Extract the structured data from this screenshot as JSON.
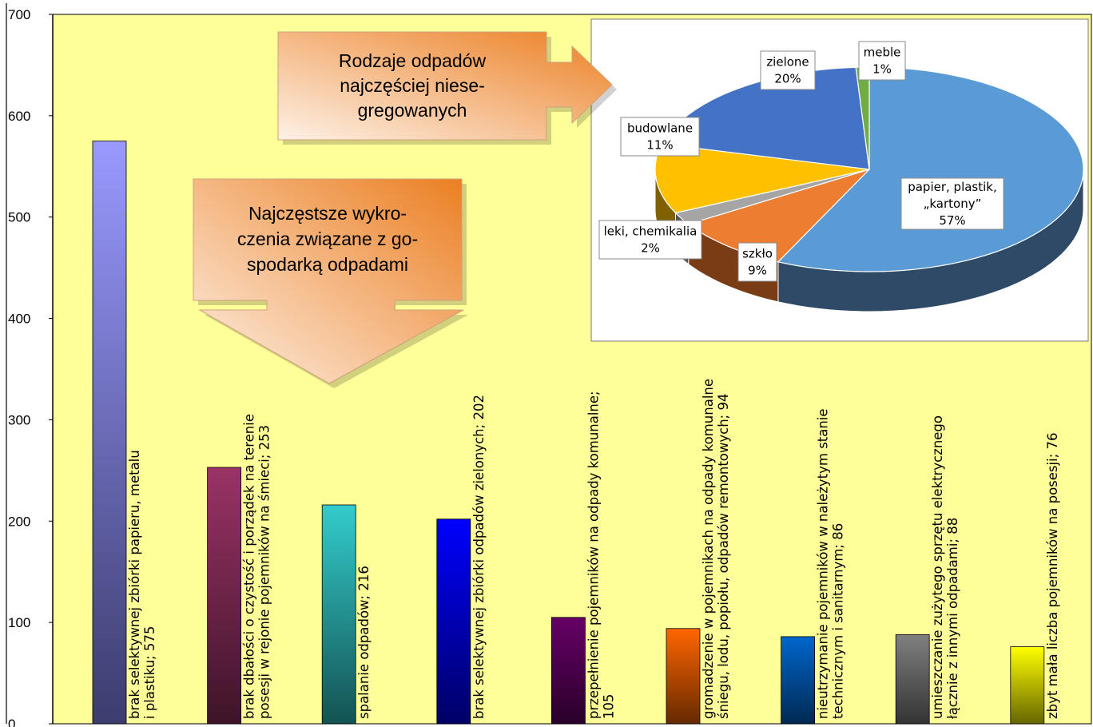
{
  "chart_data": [
    {
      "type": "bar",
      "ylim": [
        0,
        700
      ],
      "yticks": [
        "0",
        "100",
        "200",
        "300",
        "400",
        "500",
        "600",
        "700"
      ],
      "grid": false,
      "background": "#ffff99",
      "categories": [
        {
          "lines": [
            "brak selektywnej zbiórki papieru, metalu",
            "i plastiku; 575"
          ],
          "value": 575,
          "color_top": "#9999ff",
          "color_bottom": "#3c3c6e"
        },
        {
          "lines": [
            "brak dbałości o czystość i porządek na terenie",
            "posesji w rejonie pojemników na śmieci; 253"
          ],
          "value": 253,
          "color_top": "#9a3366",
          "color_bottom": "#3e1428"
        },
        {
          "lines": [
            "spalanie odpadów; 216"
          ],
          "value": 216,
          "color_top": "#33cccc",
          "color_bottom": "#145252"
        },
        {
          "lines": [
            "brak selektywnej zbiórki odpadów zielonych; 202"
          ],
          "value": 202,
          "color_top": "#0000ff",
          "color_bottom": "#000066"
        },
        {
          "lines": [
            "przepełnienie pojemników na odpady komunalne;",
            "105"
          ],
          "value": 105,
          "color_top": "#660066",
          "color_bottom": "#290029"
        },
        {
          "lines": [
            "gromadzenie w pojemnikach na odpady komunalne",
            "śniegu, lodu, popiołu, odpadów remontowych; 94"
          ],
          "value": 94,
          "color_top": "#ff6600",
          "color_bottom": "#662900"
        },
        {
          "lines": [
            "nieutrzymanie pojemników w należytym stanie",
            "technicznym i sanitarnym; 86"
          ],
          "value": 86,
          "color_top": "#0066cc",
          "color_bottom": "#002952"
        },
        {
          "lines": [
            "umieszczanie zużytego sprzętu elektrycznego",
            "łącznie z innymi odpadami; 88"
          ],
          "value": 88,
          "color_top": "#808080",
          "color_bottom": "#333333"
        },
        {
          "lines": [
            "zbyt mała liczba pojemników na posesji; 76"
          ],
          "value": 76,
          "color_top": "#ffff00",
          "color_bottom": "#666600"
        }
      ],
      "callout_lines": [
        "Najczęstsze wykro-",
        "czenia związane z go-",
        "spodarką odpadami"
      ]
    },
    {
      "type": "pie",
      "callout_lines": [
        "Rodzaje odpadów",
        "najczęściej niese-",
        "gregowanych"
      ],
      "slices": [
        {
          "lines": [
            "papier, plastik,",
            "„kartony”",
            "57%"
          ],
          "value": 57,
          "color": "#5b9bd5",
          "side": "#2e4a66"
        },
        {
          "lines": [
            "szkło",
            "9%"
          ],
          "value": 9,
          "color": "#ed7d31",
          "side": "#7a3c14"
        },
        {
          "lines": [
            "leki, chemikalia",
            "2%"
          ],
          "value": 2,
          "color": "#a5a5a5",
          "side": "#555555"
        },
        {
          "lines": [
            "budowlane",
            "11%"
          ],
          "value": 11,
          "color": "#ffc000",
          "side": "#806000"
        },
        {
          "lines": [
            "zielone",
            "20%"
          ],
          "value": 20,
          "color": "#4472c4",
          "side": "#223a66"
        },
        {
          "lines": [
            "meble",
            "1%"
          ],
          "value": 1,
          "color": "#70ad47",
          "side": "#375624"
        }
      ]
    }
  ]
}
